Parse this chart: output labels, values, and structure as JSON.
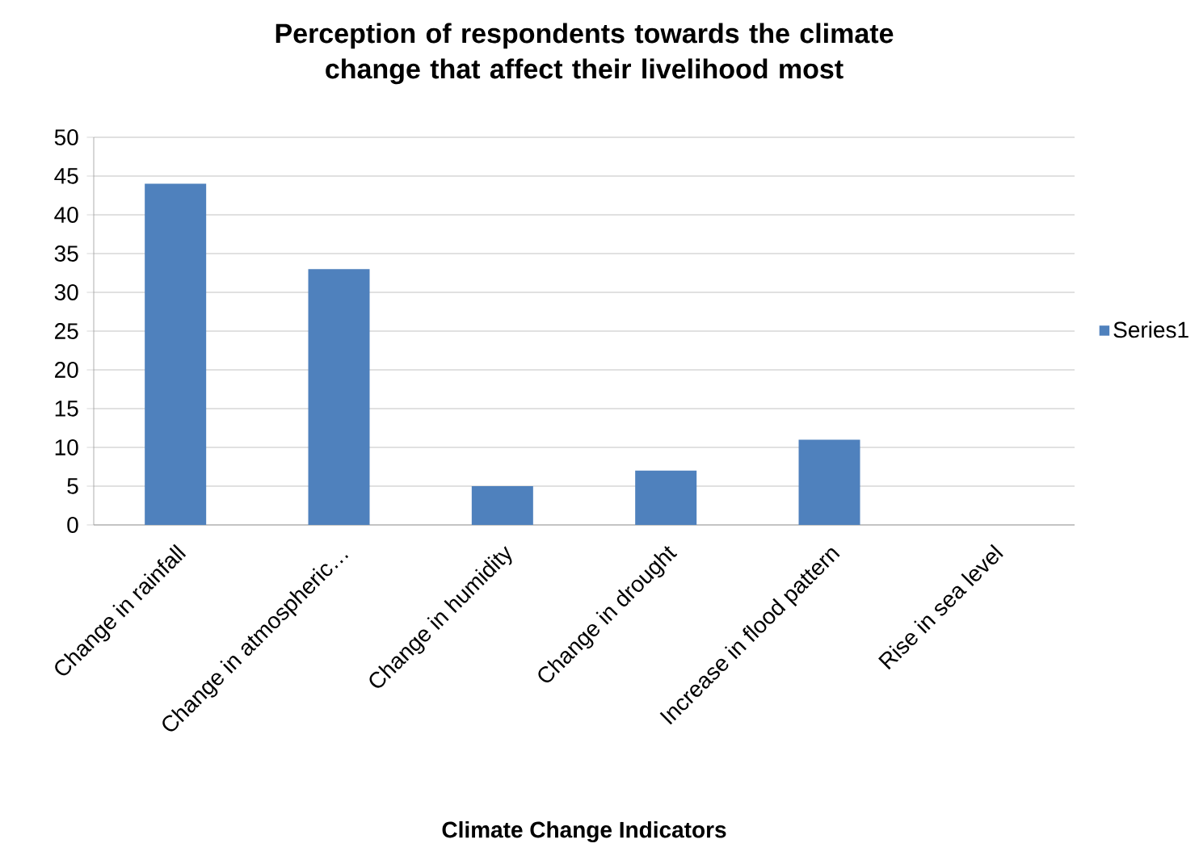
{
  "chart_data": {
    "type": "bar",
    "title": "Perception of respondents towards the climate change that affect their livelihood most",
    "xlabel": "Climate Change Indicators",
    "categories": [
      "Change in rainfall",
      "Change in atmospheric…",
      "Change in humidity",
      "Change in drought",
      "Increase in flood pattern",
      "Rise in sea level"
    ],
    "series": [
      {
        "name": "Series1",
        "color": "#4f81bd",
        "values": [
          44,
          33,
          5,
          7,
          11,
          0
        ]
      }
    ],
    "ylim": [
      0,
      50
    ],
    "yticks": [
      0,
      5,
      10,
      15,
      20,
      25,
      30,
      35,
      40,
      45,
      50
    ],
    "grid": "y",
    "legend": "right"
  }
}
